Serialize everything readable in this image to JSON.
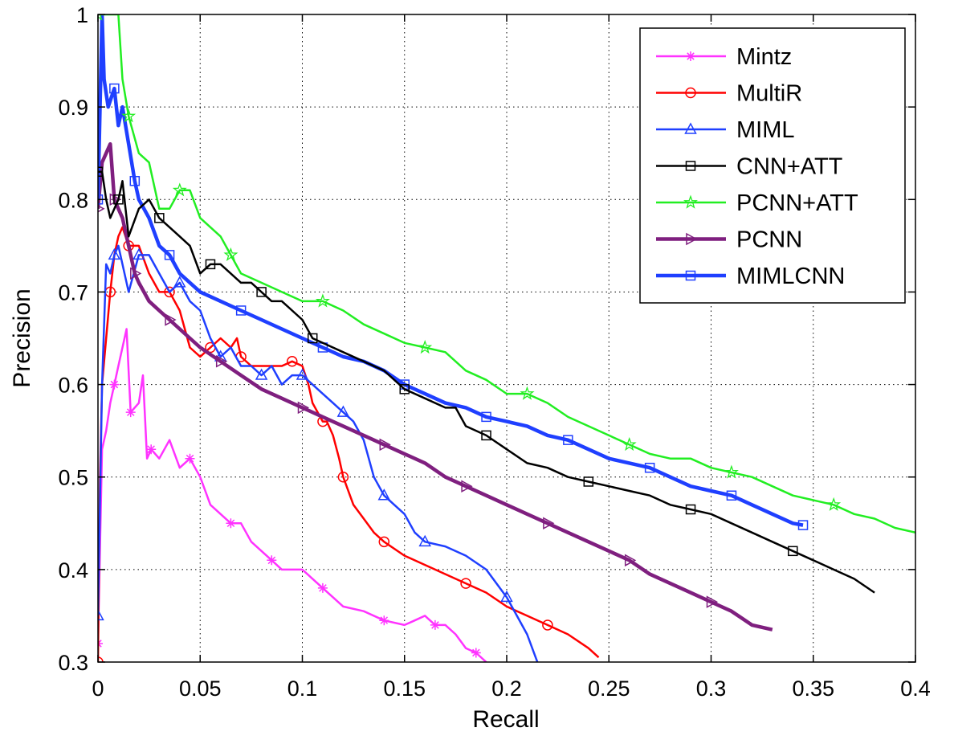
{
  "chart_data": {
    "type": "line",
    "title": "",
    "xlabel": "Recall",
    "ylabel": "Precision",
    "xlim": [
      0,
      0.4
    ],
    "ylim": [
      0.3,
      1
    ],
    "xticks": [
      0,
      0.05,
      0.1,
      0.15,
      0.2,
      0.25,
      0.3,
      0.35,
      0.4
    ],
    "xtick_labels": [
      "0",
      "0.05",
      "0.1",
      "0.15",
      "0.2",
      "0.25",
      "0.3",
      "0.35",
      "0.4"
    ],
    "yticks": [
      0.3,
      0.4,
      0.5,
      0.6,
      0.7,
      0.8,
      0.9,
      1
    ],
    "ytick_labels": [
      "0.3",
      "0.4",
      "0.5",
      "0.6",
      "0.7",
      "0.8",
      "0.9",
      "1"
    ],
    "grid": true,
    "legend_position": "top-right",
    "series": [
      {
        "name": "Mintz",
        "color": "#ff33ff",
        "marker": "star-asterisk",
        "width": 2.5,
        "x": [
          0,
          0.002,
          0.004,
          0.006,
          0.008,
          0.01,
          0.012,
          0.014,
          0.016,
          0.02,
          0.022,
          0.024,
          0.026,
          0.03,
          0.035,
          0.04,
          0.045,
          0.05,
          0.055,
          0.06,
          0.065,
          0.07,
          0.075,
          0.08,
          0.085,
          0.09,
          0.1,
          0.105,
          0.11,
          0.115,
          0.12,
          0.13,
          0.14,
          0.15,
          0.155,
          0.16,
          0.165,
          0.17,
          0.175,
          0.18,
          0.185,
          0.19
        ],
        "y": [
          0.32,
          0.53,
          0.55,
          0.58,
          0.6,
          0.62,
          0.64,
          0.66,
          0.57,
          0.58,
          0.61,
          0.52,
          0.53,
          0.52,
          0.54,
          0.51,
          0.52,
          0.5,
          0.47,
          0.46,
          0.45,
          0.45,
          0.43,
          0.42,
          0.41,
          0.4,
          0.4,
          0.39,
          0.38,
          0.37,
          0.36,
          0.355,
          0.345,
          0.34,
          0.345,
          0.35,
          0.34,
          0.34,
          0.33,
          0.315,
          0.31,
          0.3
        ]
      },
      {
        "name": "MultiR",
        "color": "#ff0000",
        "marker": "circle",
        "width": 2.5,
        "x": [
          0,
          0.001,
          0.002,
          0.004,
          0.006,
          0.008,
          0.01,
          0.012,
          0.015,
          0.02,
          0.025,
          0.03,
          0.035,
          0.04,
          0.045,
          0.05,
          0.055,
          0.06,
          0.065,
          0.068,
          0.07,
          0.075,
          0.08,
          0.09,
          0.095,
          0.1,
          0.103,
          0.105,
          0.11,
          0.112,
          0.115,
          0.118,
          0.12,
          0.125,
          0.13,
          0.135,
          0.14,
          0.15,
          0.16,
          0.17,
          0.18,
          0.19,
          0.2,
          0.21,
          0.22,
          0.23,
          0.24,
          0.245
        ],
        "y": [
          0.3,
          0.5,
          0.6,
          0.65,
          0.7,
          0.74,
          0.76,
          0.77,
          0.75,
          0.75,
          0.72,
          0.7,
          0.7,
          0.68,
          0.64,
          0.63,
          0.64,
          0.65,
          0.64,
          0.65,
          0.63,
          0.62,
          0.62,
          0.62,
          0.625,
          0.62,
          0.6,
          0.58,
          0.56,
          0.56,
          0.545,
          0.52,
          0.5,
          0.47,
          0.455,
          0.44,
          0.43,
          0.415,
          0.405,
          0.395,
          0.385,
          0.375,
          0.36,
          0.35,
          0.34,
          0.33,
          0.315,
          0.305
        ]
      },
      {
        "name": "MIML",
        "color": "#1f3fff",
        "marker": "triangle",
        "width": 2.5,
        "x": [
          0,
          0.002,
          0.004,
          0.006,
          0.008,
          0.01,
          0.012,
          0.015,
          0.02,
          0.025,
          0.03,
          0.035,
          0.04,
          0.045,
          0.05,
          0.055,
          0.06,
          0.065,
          0.07,
          0.075,
          0.08,
          0.085,
          0.09,
          0.095,
          0.1,
          0.105,
          0.11,
          0.115,
          0.12,
          0.125,
          0.13,
          0.135,
          0.14,
          0.145,
          0.15,
          0.155,
          0.16,
          0.17,
          0.18,
          0.19,
          0.2,
          0.205,
          0.21,
          0.215
        ],
        "y": [
          0.35,
          0.6,
          0.73,
          0.72,
          0.74,
          0.75,
          0.73,
          0.7,
          0.74,
          0.74,
          0.72,
          0.7,
          0.71,
          0.69,
          0.68,
          0.65,
          0.63,
          0.64,
          0.62,
          0.62,
          0.61,
          0.62,
          0.6,
          0.61,
          0.61,
          0.6,
          0.59,
          0.58,
          0.57,
          0.56,
          0.54,
          0.5,
          0.48,
          0.47,
          0.46,
          0.44,
          0.43,
          0.425,
          0.415,
          0.4,
          0.37,
          0.35,
          0.33,
          0.3
        ]
      },
      {
        "name": "CNN+ATT",
        "color": "#000000",
        "marker": "square",
        "width": 2.5,
        "x": [
          0,
          0.002,
          0.004,
          0.006,
          0.008,
          0.01,
          0.012,
          0.015,
          0.02,
          0.025,
          0.03,
          0.035,
          0.04,
          0.045,
          0.05,
          0.055,
          0.06,
          0.065,
          0.07,
          0.075,
          0.08,
          0.085,
          0.09,
          0.095,
          0.1,
          0.105,
          0.11,
          0.12,
          0.13,
          0.14,
          0.15,
          0.16,
          0.17,
          0.175,
          0.18,
          0.19,
          0.2,
          0.21,
          0.22,
          0.23,
          0.24,
          0.25,
          0.26,
          0.27,
          0.28,
          0.29,
          0.3,
          0.31,
          0.32,
          0.33,
          0.34,
          0.35,
          0.36,
          0.37,
          0.38
        ],
        "y": [
          0.83,
          0.83,
          0.8,
          0.78,
          0.79,
          0.8,
          0.82,
          0.76,
          0.79,
          0.8,
          0.78,
          0.77,
          0.76,
          0.75,
          0.72,
          0.73,
          0.73,
          0.72,
          0.71,
          0.71,
          0.7,
          0.69,
          0.69,
          0.68,
          0.67,
          0.65,
          0.645,
          0.635,
          0.625,
          0.615,
          0.595,
          0.585,
          0.575,
          0.575,
          0.555,
          0.545,
          0.53,
          0.515,
          0.51,
          0.5,
          0.495,
          0.49,
          0.485,
          0.48,
          0.47,
          0.465,
          0.46,
          0.45,
          0.44,
          0.43,
          0.42,
          0.41,
          0.4,
          0.39,
          0.375
        ]
      },
      {
        "name": "PCNN+ATT",
        "color": "#22ee22",
        "marker": "star",
        "width": 2.5,
        "x": [
          0,
          0.002,
          0.005,
          0.01,
          0.012,
          0.015,
          0.02,
          0.025,
          0.03,
          0.035,
          0.04,
          0.045,
          0.05,
          0.055,
          0.06,
          0.065,
          0.07,
          0.08,
          0.09,
          0.1,
          0.11,
          0.12,
          0.13,
          0.14,
          0.15,
          0.16,
          0.17,
          0.18,
          0.19,
          0.2,
          0.21,
          0.22,
          0.23,
          0.24,
          0.25,
          0.26,
          0.27,
          0.28,
          0.29,
          0.3,
          0.31,
          0.32,
          0.33,
          0.34,
          0.35,
          0.36,
          0.37,
          0.38,
          0.39,
          0.4
        ],
        "y": [
          1,
          1,
          1,
          1,
          0.93,
          0.89,
          0.85,
          0.84,
          0.79,
          0.79,
          0.81,
          0.81,
          0.78,
          0.77,
          0.76,
          0.74,
          0.72,
          0.71,
          0.7,
          0.69,
          0.69,
          0.68,
          0.665,
          0.655,
          0.645,
          0.64,
          0.635,
          0.615,
          0.605,
          0.59,
          0.59,
          0.58,
          0.565,
          0.555,
          0.545,
          0.535,
          0.525,
          0.52,
          0.52,
          0.51,
          0.505,
          0.5,
          0.49,
          0.48,
          0.475,
          0.47,
          0.46,
          0.455,
          0.445,
          0.44
        ]
      },
      {
        "name": "PCNN",
        "color": "#7f1f7f",
        "marker": "triangle-right",
        "width": 4.5,
        "x": [
          0,
          0.002,
          0.004,
          0.006,
          0.008,
          0.01,
          0.012,
          0.015,
          0.018,
          0.02,
          0.025,
          0.03,
          0.035,
          0.04,
          0.045,
          0.05,
          0.06,
          0.07,
          0.08,
          0.09,
          0.1,
          0.11,
          0.12,
          0.13,
          0.14,
          0.15,
          0.16,
          0.17,
          0.18,
          0.19,
          0.2,
          0.21,
          0.22,
          0.23,
          0.24,
          0.25,
          0.26,
          0.27,
          0.28,
          0.29,
          0.3,
          0.31,
          0.32,
          0.33
        ],
        "y": [
          0.79,
          0.84,
          0.85,
          0.86,
          0.8,
          0.79,
          0.78,
          0.75,
          0.72,
          0.71,
          0.69,
          0.68,
          0.67,
          0.66,
          0.65,
          0.64,
          0.625,
          0.61,
          0.595,
          0.585,
          0.575,
          0.565,
          0.555,
          0.545,
          0.535,
          0.525,
          0.515,
          0.5,
          0.49,
          0.48,
          0.47,
          0.46,
          0.45,
          0.44,
          0.43,
          0.42,
          0.41,
          0.395,
          0.385,
          0.375,
          0.365,
          0.355,
          0.34,
          0.335
        ]
      },
      {
        "name": "MIMLCNN",
        "color": "#1f3fff",
        "marker": "square",
        "width": 4.5,
        "x": [
          0,
          0.002,
          0.003,
          0.005,
          0.008,
          0.01,
          0.012,
          0.015,
          0.018,
          0.02,
          0.025,
          0.03,
          0.035,
          0.04,
          0.05,
          0.06,
          0.07,
          0.08,
          0.09,
          0.1,
          0.11,
          0.12,
          0.13,
          0.14,
          0.15,
          0.16,
          0.17,
          0.18,
          0.19,
          0.2,
          0.21,
          0.22,
          0.23,
          0.24,
          0.25,
          0.26,
          0.27,
          0.28,
          0.29,
          0.3,
          0.31,
          0.32,
          0.33,
          0.34,
          0.345
        ],
        "y": [
          0.8,
          1,
          0.93,
          0.9,
          0.92,
          0.88,
          0.9,
          0.86,
          0.82,
          0.8,
          0.78,
          0.75,
          0.74,
          0.72,
          0.7,
          0.69,
          0.68,
          0.67,
          0.66,
          0.65,
          0.64,
          0.63,
          0.625,
          0.615,
          0.6,
          0.59,
          0.58,
          0.575,
          0.565,
          0.56,
          0.555,
          0.545,
          0.54,
          0.53,
          0.52,
          0.515,
          0.51,
          0.5,
          0.49,
          0.485,
          0.48,
          0.47,
          0.46,
          0.45,
          0.448
        ]
      }
    ]
  }
}
